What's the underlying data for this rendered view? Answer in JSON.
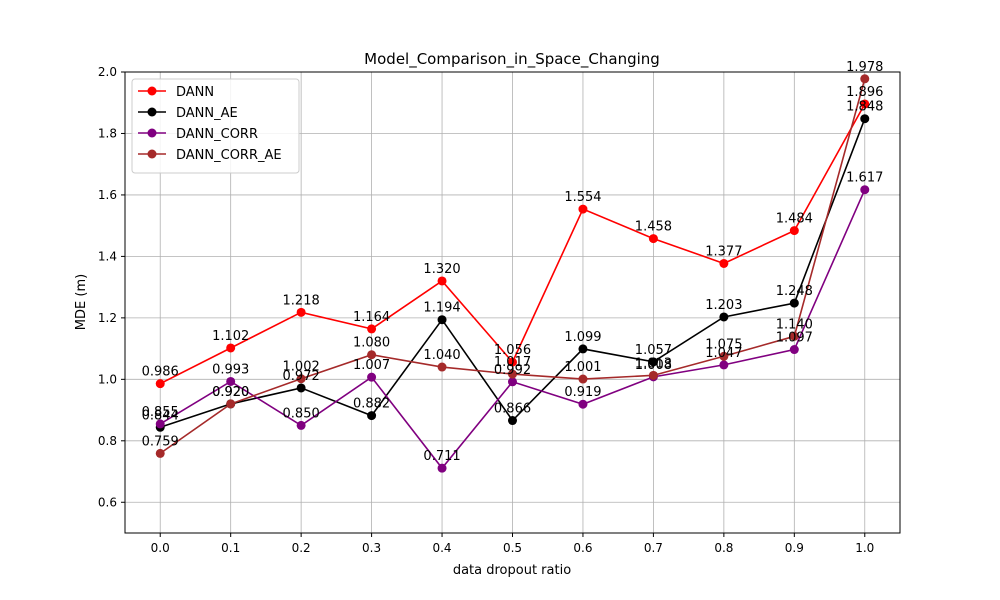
{
  "chart_data": {
    "type": "line",
    "title": "Model_Comparison_in_Space_Changing",
    "xlabel": "data dropout ratio",
    "ylabel": "MDE (m)",
    "x": [
      0.0,
      0.1,
      0.2,
      0.3,
      0.4,
      0.5,
      0.6,
      0.7,
      0.8,
      0.9,
      1.0
    ],
    "x_tick_labels": [
      "0.0",
      "0.1",
      "0.2",
      "0.3",
      "0.4",
      "0.5",
      "0.6",
      "0.7",
      "0.8",
      "0.9",
      "1.0"
    ],
    "y_ticks": [
      0.6,
      0.8,
      1.0,
      1.2,
      1.4,
      1.6,
      1.8,
      2.0
    ],
    "y_tick_labels": [
      "0.6",
      "0.8",
      "1.0",
      "1.2",
      "1.4",
      "1.6",
      "1.8",
      "2.0"
    ],
    "xlim": [
      -0.05,
      1.05
    ],
    "ylim": [
      0.5,
      2.0
    ],
    "grid": true,
    "legend_position": "top-left",
    "series": [
      {
        "name": "DANN",
        "color": "#ff0000",
        "values": [
          0.986,
          1.102,
          1.218,
          1.164,
          1.32,
          1.056,
          1.554,
          1.458,
          1.377,
          1.484,
          1.896
        ],
        "labels": [
          "0.986",
          "1.102",
          "1.218",
          "1.164",
          "1.320",
          "1.056",
          "1.554",
          "1.458",
          "1.377",
          "1.484",
          "1.896"
        ]
      },
      {
        "name": "DANN_AE",
        "color": "#000000",
        "values": [
          0.844,
          0.92,
          0.972,
          0.882,
          1.194,
          0.866,
          1.099,
          1.057,
          1.203,
          1.248,
          1.848
        ],
        "labels": [
          "0.844",
          "0.920",
          "0.972",
          "0.882",
          "1.194",
          "0.866",
          "1.099",
          "1.057",
          "1.203",
          "1.248",
          "1.848"
        ]
      },
      {
        "name": "DANN_CORR",
        "color": "#800080",
        "values": [
          0.855,
          0.993,
          0.85,
          1.007,
          0.711,
          0.992,
          0.919,
          1.008,
          1.047,
          1.097,
          1.617
        ],
        "labels": [
          "0.855",
          "0.993",
          "0.850",
          "1.007",
          "0.711",
          "0.992",
          "0.919",
          "1.008",
          "1.047",
          "1.097",
          "1.617"
        ]
      },
      {
        "name": "DANN_CORR_AE",
        "color": "#a52a2a",
        "values": [
          0.759,
          0.92,
          1.002,
          1.08,
          1.04,
          1.017,
          1.001,
          1.013,
          1.075,
          1.14,
          1.978
        ],
        "labels": [
          "0.759",
          "0.920",
          "1.002",
          "1.080",
          "1.040",
          "1.017",
          "1.001",
          "1.013",
          "1.075",
          "1.140",
          "1.978"
        ]
      }
    ]
  }
}
